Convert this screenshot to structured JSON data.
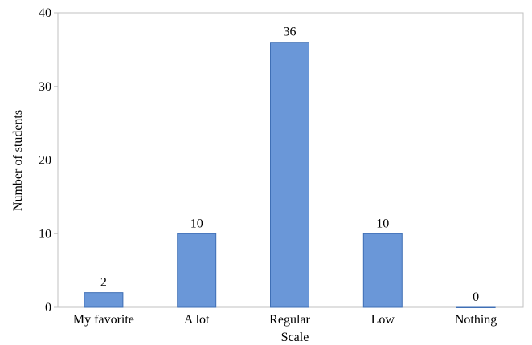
{
  "chart_data": {
    "type": "bar",
    "categories": [
      "My favorite",
      "A lot",
      "Regular",
      "Low",
      "Nothing"
    ],
    "values": [
      2,
      10,
      36,
      10,
      0
    ],
    "data_labels": [
      "2",
      "10",
      "36",
      "10",
      "0"
    ],
    "xlabel": "Scale",
    "ylabel": "Number of students",
    "ylim": [
      0,
      40
    ],
    "yticks": [
      "0",
      "10",
      "20",
      "30",
      "40"
    ],
    "ytick_values": [
      0,
      10,
      20,
      30,
      40
    ],
    "grid": false,
    "colors": {
      "bar": "#6a97d8",
      "bar_edge": "#3f6fb5",
      "axis": "#c0c0c0",
      "text": "#000000"
    }
  }
}
